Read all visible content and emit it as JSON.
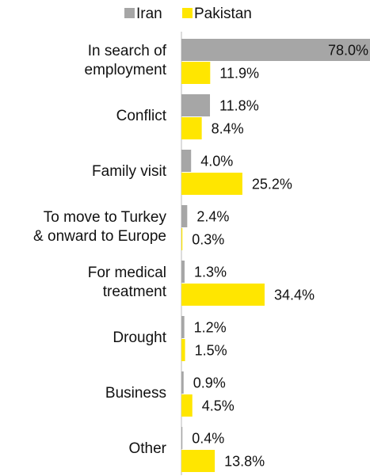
{
  "chart_data": {
    "type": "bar",
    "orientation": "horizontal",
    "categories": [
      [
        "In search of",
        "employment"
      ],
      [
        "Conflict"
      ],
      [
        "Family visit"
      ],
      [
        "To move to Turkey",
        "& onward to Europe"
      ],
      [
        "For medical",
        "treatment"
      ],
      [
        "Drought"
      ],
      [
        "Business"
      ],
      [
        "Other"
      ]
    ],
    "series": [
      {
        "name": "Iran",
        "color": "#a6a6a6",
        "values": [
          78.0,
          11.8,
          4.0,
          2.4,
          1.3,
          1.2,
          0.9,
          0.4
        ],
        "labels": [
          "78.0%",
          "11.8%",
          "4.0%",
          "2.4%",
          "1.3%",
          "1.2%",
          "0.9%",
          "0.4%"
        ]
      },
      {
        "name": "Pakistan",
        "color": "#ffe600",
        "values": [
          11.9,
          8.4,
          25.2,
          0.3,
          34.4,
          1.5,
          4.5,
          13.8
        ],
        "labels": [
          "11.9%",
          "8.4%",
          "25.2%",
          "0.3%",
          "34.4%",
          "1.5%",
          "4.5%",
          "13.8%"
        ]
      }
    ],
    "xlim": [
      0,
      78
    ],
    "legend": "top",
    "grid": false,
    "title": "",
    "xlabel": "",
    "ylabel": ""
  }
}
